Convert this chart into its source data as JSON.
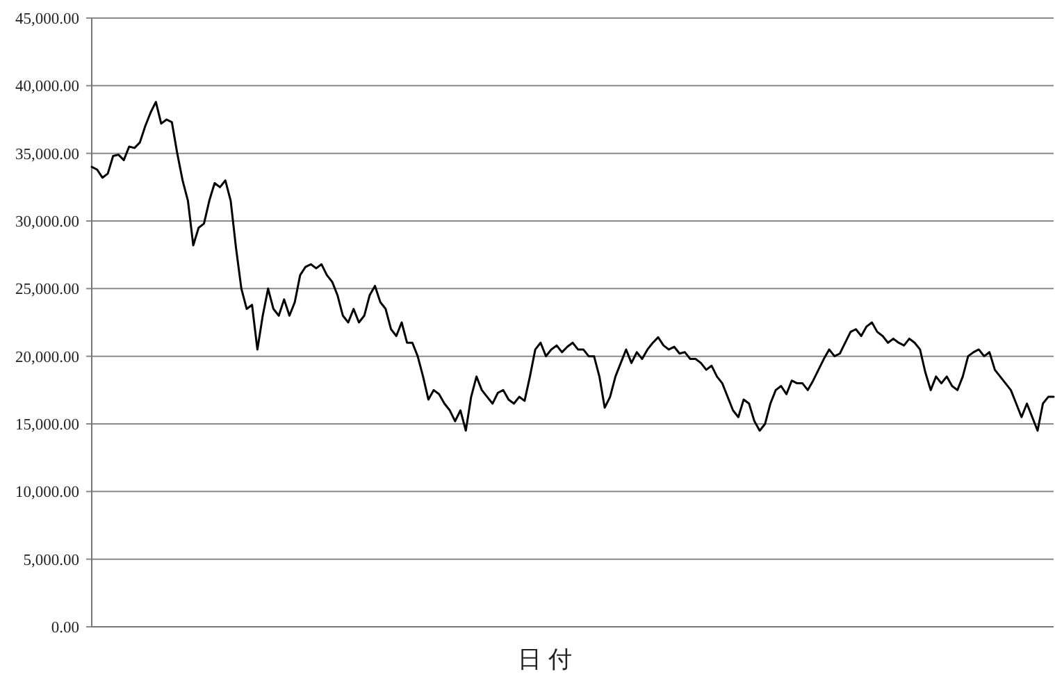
{
  "chart_data": {
    "type": "line",
    "xlabel": "日 付",
    "color": "#000000",
    "grid": "y",
    "ylim": [
      0,
      45000
    ],
    "yticks": [
      {
        "value": 0,
        "label": "0.00"
      },
      {
        "value": 5000,
        "label": "5,000.00"
      },
      {
        "value": 10000,
        "label": "10,000.00"
      },
      {
        "value": 15000,
        "label": "15,000.00"
      },
      {
        "value": 20000,
        "label": "20,000.00"
      },
      {
        "value": 25000,
        "label": "25,000.00"
      },
      {
        "value": 30000,
        "label": "30,000.00"
      },
      {
        "value": 35000,
        "label": "35,000.00"
      },
      {
        "value": 40000,
        "label": "40,000.00"
      },
      {
        "value": 45000,
        "label": "45,000.00"
      }
    ],
    "categories": [
      null,
      null,
      null,
      null,
      null,
      null,
      null,
      null,
      null,
      null,
      null,
      null,
      null,
      null,
      null,
      null,
      null,
      null,
      null,
      null,
      null,
      null,
      null,
      null,
      null,
      null,
      null,
      null,
      null,
      null,
      null,
      null,
      null,
      null,
      null,
      null,
      null,
      null,
      null,
      null,
      null,
      null,
      null,
      null,
      null,
      null,
      null,
      null,
      null,
      null,
      null,
      null,
      null,
      null,
      null,
      null,
      null,
      null,
      null,
      null,
      null,
      null,
      null,
      null,
      null,
      null,
      null,
      null,
      null,
      null,
      null,
      null,
      null,
      null,
      null,
      null,
      null,
      null,
      null,
      null,
      null,
      null,
      null,
      null,
      null,
      null,
      null,
      null,
      null,
      null,
      null,
      null,
      null,
      null,
      null,
      null,
      null,
      null,
      null,
      null,
      null,
      null,
      null,
      null,
      null,
      null,
      null,
      null,
      null,
      null,
      null,
      null,
      null,
      null,
      null,
      null,
      null,
      null,
      null,
      null,
      null,
      null,
      null,
      null,
      null,
      null,
      null,
      null,
      null,
      null,
      null,
      null,
      null,
      null,
      null,
      null,
      null,
      null,
      null,
      null,
      null,
      null,
      null,
      null,
      null,
      null,
      null,
      null,
      null,
      null,
      null,
      null,
      null,
      null,
      null,
      null,
      null,
      null,
      null,
      null,
      null,
      null,
      null,
      null,
      null,
      null,
      null,
      null,
      null,
      null,
      null,
      null,
      null,
      null,
      null,
      null,
      null,
      null,
      null,
      null,
      null
    ],
    "values": [
      34000,
      33800,
      33200,
      33500,
      34800,
      34900,
      34500,
      35500,
      35400,
      35800,
      37000,
      38000,
      38800,
      37200,
      37500,
      37300,
      35000,
      33000,
      31500,
      28200,
      29500,
      29800,
      31500,
      32800,
      32500,
      33000,
      31500,
      28000,
      25000,
      23500,
      23800,
      20500,
      23000,
      25000,
      23500,
      23000,
      24200,
      23000,
      24000,
      26000,
      26600,
      26800,
      26500,
      26800,
      26000,
      25500,
      24500,
      23000,
      22500,
      23500,
      22500,
      23000,
      24500,
      25200,
      24000,
      23500,
      22000,
      21500,
      22500,
      21000,
      21000,
      20000,
      18500,
      16800,
      17500,
      17200,
      16500,
      16000,
      15200,
      16000,
      14500,
      17000,
      18500,
      17500,
      17000,
      16500,
      17300,
      17500,
      16800,
      16500,
      17000,
      16700,
      18500,
      20500,
      21000,
      20000,
      20500,
      20800,
      20300,
      20700,
      21000,
      20500,
      20500,
      20000,
      20000,
      18500,
      16200,
      17000,
      18500,
      19500,
      20500,
      19500,
      20300,
      19800,
      20500,
      21000,
      21400,
      20800,
      20500,
      20700,
      20200,
      20300,
      19800,
      19800,
      19500,
      19000,
      19300,
      18500,
      18000,
      17000,
      16000,
      15500,
      16800,
      16500,
      15200,
      14500,
      15000,
      16500,
      17500,
      17800,
      17200,
      18200,
      18000,
      18000,
      17500,
      18200,
      19000,
      19800,
      20500,
      20000,
      20200,
      21000,
      21800,
      22000,
      21500,
      22200,
      22500,
      21800,
      21500,
      21000,
      21300,
      21000,
      20800,
      21300,
      21000,
      20500,
      18800,
      17500,
      18500,
      18000,
      18500,
      17800,
      17500,
      18500,
      20000,
      20300,
      20500,
      20000,
      20300,
      19000,
      18500,
      18000,
      17500,
      16500,
      15500,
      16500,
      15500,
      14500,
      16500,
      17000,
      17000
    ]
  }
}
